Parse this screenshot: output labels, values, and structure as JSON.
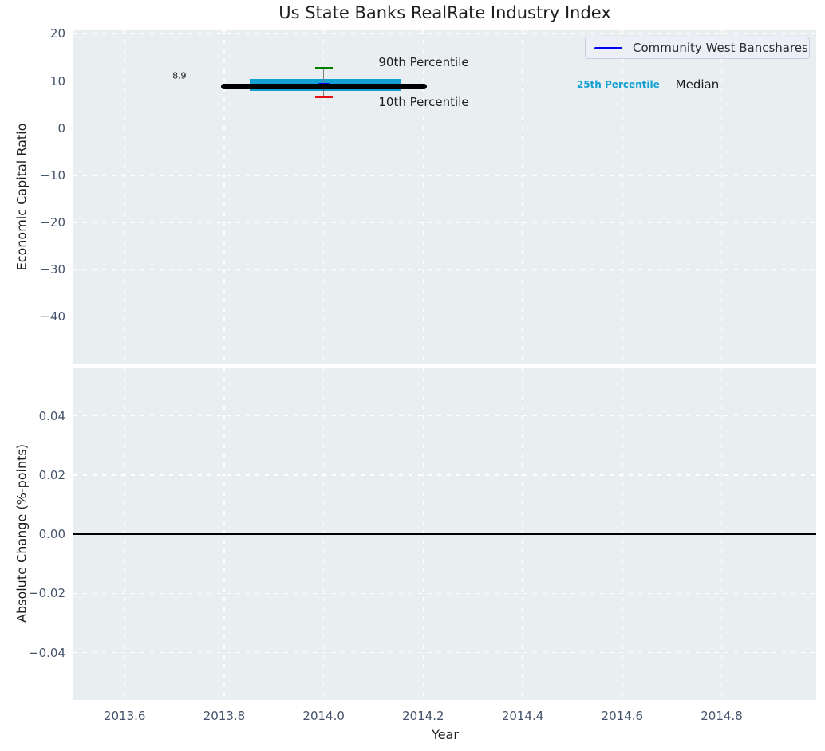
{
  "title": "Us State Banks RealRate Industry Index",
  "legend": {
    "position": "upper right",
    "items": [
      {
        "label": "Community West Bancshares",
        "color": "#0000ee"
      }
    ]
  },
  "colors": {
    "axes_background": "#e9eef0",
    "grid": "#ffffff",
    "tick_text": "#44536b",
    "band_cyan": "#12a0d3",
    "median_black": "#000000",
    "cap_90th_green": "#008000",
    "cap_10th_red": "#e61010",
    "errorbar_gray": "#7f7f7f",
    "company_blue": "#0000ee"
  },
  "chart_data": [
    {
      "type": "line",
      "subplot": "economic-capital-ratio",
      "title": "Us State Banks RealRate Industry Index",
      "ylabel": "Economic Capital Ratio",
      "xlabel": "",
      "xlim": [
        2013.497,
        2014.99
      ],
      "ylim": [
        -50.1,
        20.75
      ],
      "grid": true,
      "legend_entries": [
        "Community West Bancshares"
      ],
      "yticks": [
        {
          "v": 20,
          "label": "20"
        },
        {
          "v": 10,
          "label": "10"
        },
        {
          "v": 0,
          "label": "0"
        },
        {
          "v": -10,
          "label": "−10"
        },
        {
          "v": -20,
          "label": "−20"
        },
        {
          "v": -30,
          "label": "−30"
        },
        {
          "v": -40,
          "label": "−40"
        }
      ],
      "series": [
        {
          "name": "Community West Bancshares",
          "kind": "point",
          "marker": "triangle-down",
          "color": "#0000ee",
          "x": 2014.0,
          "y": 8.9
        },
        {
          "name": "Median",
          "kind": "hsegment",
          "color": "#000000",
          "x_start": 2013.793,
          "x_end": 2014.207,
          "y": 8.9
        },
        {
          "name": "25th-75th Percentile Band",
          "kind": "band",
          "color": "#12a0d3",
          "x_start": 2013.851,
          "x_end": 2014.154,
          "y_top": 10.4,
          "y_bottom": 7.9
        },
        {
          "name": "10th-90th Percentile Whisker",
          "kind": "errorbar",
          "x": 2014.0,
          "y_high": 12.7,
          "y_low": 6.6,
          "line_color": "#7f7f7f",
          "cap_high_color": "#008000",
          "cap_low_color": "#e61010"
        }
      ],
      "annotations": [
        {
          "text": "8.9",
          "x": 2013.71,
          "y": 11.1,
          "style": "small"
        },
        {
          "text": "90th Percentile",
          "x": 2014.201,
          "y": 14.0,
          "style": "normal"
        },
        {
          "text": "10th Percentile",
          "x": 2014.201,
          "y": 5.5,
          "style": "normal"
        },
        {
          "text": "25th Percentile",
          "x": 2014.592,
          "y": 9.25,
          "style": "cyan-bold"
        },
        {
          "text": "Median",
          "x": 2014.751,
          "y": 9.25,
          "style": "normal"
        }
      ]
    },
    {
      "type": "line",
      "subplot": "absolute-change",
      "ylabel": "Absolute Change (%-points)",
      "xlabel": "Year",
      "xlim": [
        2013.497,
        2014.99
      ],
      "ylim": [
        -0.056,
        0.0563
      ],
      "grid": true,
      "zero_line": 0.0,
      "yticks": [
        {
          "v": 0.04,
          "label": "0.04"
        },
        {
          "v": 0.02,
          "label": "0.02"
        },
        {
          "v": 0.0,
          "label": "0.00"
        },
        {
          "v": -0.02,
          "label": "−0.02"
        },
        {
          "v": -0.04,
          "label": "−0.04"
        }
      ],
      "xticks": [
        {
          "v": 2013.6,
          "label": "2013.6"
        },
        {
          "v": 2013.8,
          "label": "2013.8"
        },
        {
          "v": 2014.0,
          "label": "2014.0"
        },
        {
          "v": 2014.2,
          "label": "2014.2"
        },
        {
          "v": 2014.4,
          "label": "2014.4"
        },
        {
          "v": 2014.6,
          "label": "2014.6"
        },
        {
          "v": 2014.8,
          "label": "2014.8"
        }
      ]
    }
  ]
}
